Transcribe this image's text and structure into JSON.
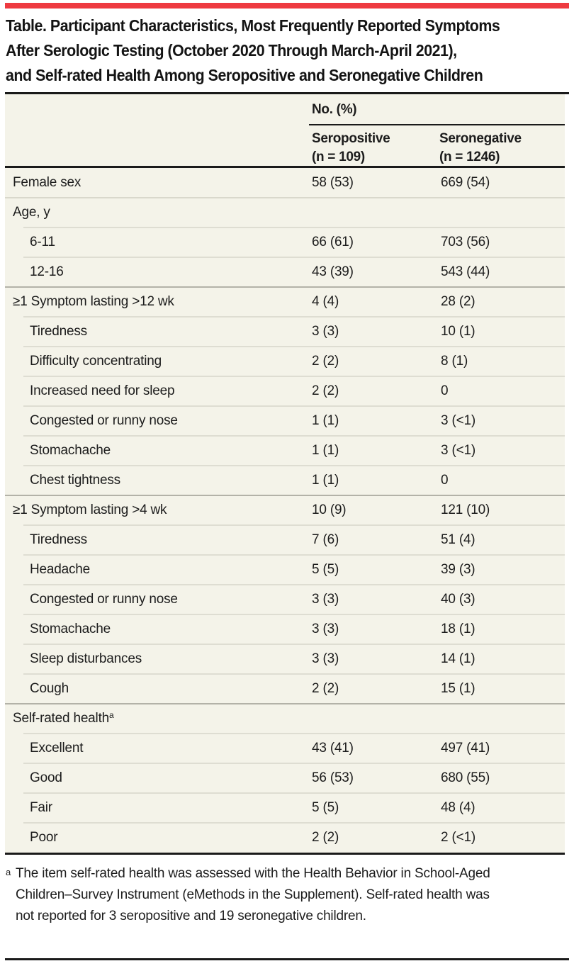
{
  "accent_color": "#ee3a40",
  "title": {
    "line1": "Table. Participant Characteristics, Most Frequently Reported Symptoms",
    "line2": "After Serologic Testing (October 2020 Through March-April 2021),",
    "line3": "and Self-rated Health Among Seropositive and Seronegative Children"
  },
  "header": {
    "spanner": "No. (%)",
    "col1": {
      "name": "Seropositive",
      "n": "(n = 109)"
    },
    "col2": {
      "name": "Seronegative",
      "n": "(n = 1246)"
    }
  },
  "rows": [
    {
      "label": "Female sex",
      "seropositive": "58 (53)",
      "seronegative": "669 (54)"
    },
    {
      "label": "Age, y",
      "seropositive": "",
      "seronegative": ""
    },
    {
      "label": "6-11",
      "seropositive": "66 (61)",
      "seronegative": "703 (56)"
    },
    {
      "label": "12-16",
      "seropositive": "43 (39)",
      "seronegative": "543 (44)"
    },
    {
      "label": "≥1 Symptom lasting >12 wk",
      "seropositive": "4 (4)",
      "seronegative": "28 (2)"
    },
    {
      "label": "Tiredness",
      "seropositive": "3 (3)",
      "seronegative": "10 (1)"
    },
    {
      "label": "Difficulty concentrating",
      "seropositive": "2 (2)",
      "seronegative": "8 (1)"
    },
    {
      "label": "Increased need for sleep",
      "seropositive": "2 (2)",
      "seronegative": "0"
    },
    {
      "label": "Congested or runny nose",
      "seropositive": "1 (1)",
      "seronegative": "3 (<1)"
    },
    {
      "label": "Stomachache",
      "seropositive": "1 (1)",
      "seronegative": "3 (<1)"
    },
    {
      "label": "Chest tightness",
      "seropositive": "1 (1)",
      "seronegative": "0"
    },
    {
      "label": "≥1 Symptom lasting >4 wk",
      "seropositive": "10 (9)",
      "seronegative": "121 (10)"
    },
    {
      "label": "Tiredness",
      "seropositive": "7 (6)",
      "seronegative": "51 (4)"
    },
    {
      "label": "Headache",
      "seropositive": "5 (5)",
      "seronegative": "39 (3)"
    },
    {
      "label": "Congested or runny nose",
      "seropositive": "3 (3)",
      "seronegative": "40 (3)"
    },
    {
      "label": "Stomachache",
      "seropositive": "3 (3)",
      "seronegative": "18 (1)"
    },
    {
      "label": "Sleep disturbances",
      "seropositive": "3 (3)",
      "seronegative": "14 (1)"
    },
    {
      "label": "Cough",
      "seropositive": "2 (2)",
      "seronegative": "15 (1)"
    },
    {
      "label": "Self-rated health",
      "sup": "a",
      "seropositive": "",
      "seronegative": ""
    },
    {
      "label": "Excellent",
      "seropositive": "43 (41)",
      "seronegative": "497 (41)"
    },
    {
      "label": "Good",
      "seropositive": "56 (53)",
      "seronegative": "680 (55)"
    },
    {
      "label": "Fair",
      "seropositive": "5 (5)",
      "seronegative": "48 (4)"
    },
    {
      "label": "Poor",
      "seropositive": "2 (2)",
      "seronegative": "2 (<1)"
    }
  ],
  "footnote": {
    "marker": "a",
    "text": "The item self-rated health was assessed with the Health Behavior in School-Aged Children–Survey Instrument (eMethods in the Supplement). Self-rated health was not reported for 3 seropositive and 19 seronegative children."
  }
}
